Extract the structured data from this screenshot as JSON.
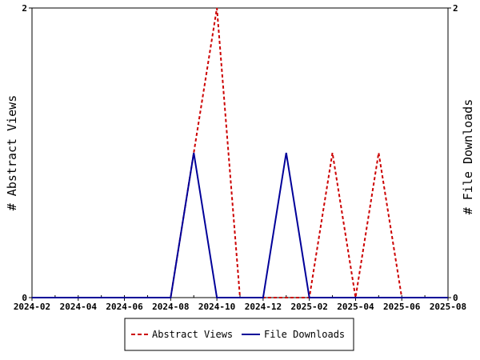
{
  "chart_data": {
    "type": "line",
    "xlabel": "",
    "ylabel": "# Abstract Views",
    "ylabel_right": "# File Downloads",
    "x": [
      "2024-02",
      "2024-03",
      "2024-04",
      "2024-05",
      "2024-06",
      "2024-07",
      "2024-08",
      "2024-09",
      "2024-10",
      "2024-11",
      "2024-12",
      "2025-01",
      "2025-02",
      "2025-03",
      "2025-04",
      "2025-05",
      "2025-06",
      "2025-07",
      "2025-08"
    ],
    "x_tick_labels": [
      "2024-02",
      "2024-04",
      "2024-06",
      "2024-08",
      "2024-10",
      "2024-12",
      "2025-02",
      "2025-04",
      "2025-06",
      "2025-08"
    ],
    "ylim": [
      0,
      2
    ],
    "ylim_right": [
      0,
      2
    ],
    "y_tick_labels": [
      "0",
      "2"
    ],
    "y_tick_labels_right": [
      "0",
      "2"
    ],
    "grid": false,
    "legend_position": "bottom-center",
    "series": [
      {
        "name": "Abstract Views",
        "color": "#cc0000",
        "style": "dashed",
        "axis": "left",
        "values": [
          0,
          0,
          0,
          0,
          0,
          0,
          0,
          1,
          2,
          0,
          0,
          0,
          0,
          1,
          0,
          1,
          0,
          0,
          0
        ]
      },
      {
        "name": "File Downloads",
        "color": "#000099",
        "style": "solid",
        "axis": "right",
        "values": [
          0,
          0,
          0,
          0,
          0,
          0,
          0,
          1,
          0,
          0,
          0,
          1,
          0,
          0,
          0,
          0,
          0,
          0,
          0
        ]
      }
    ]
  }
}
